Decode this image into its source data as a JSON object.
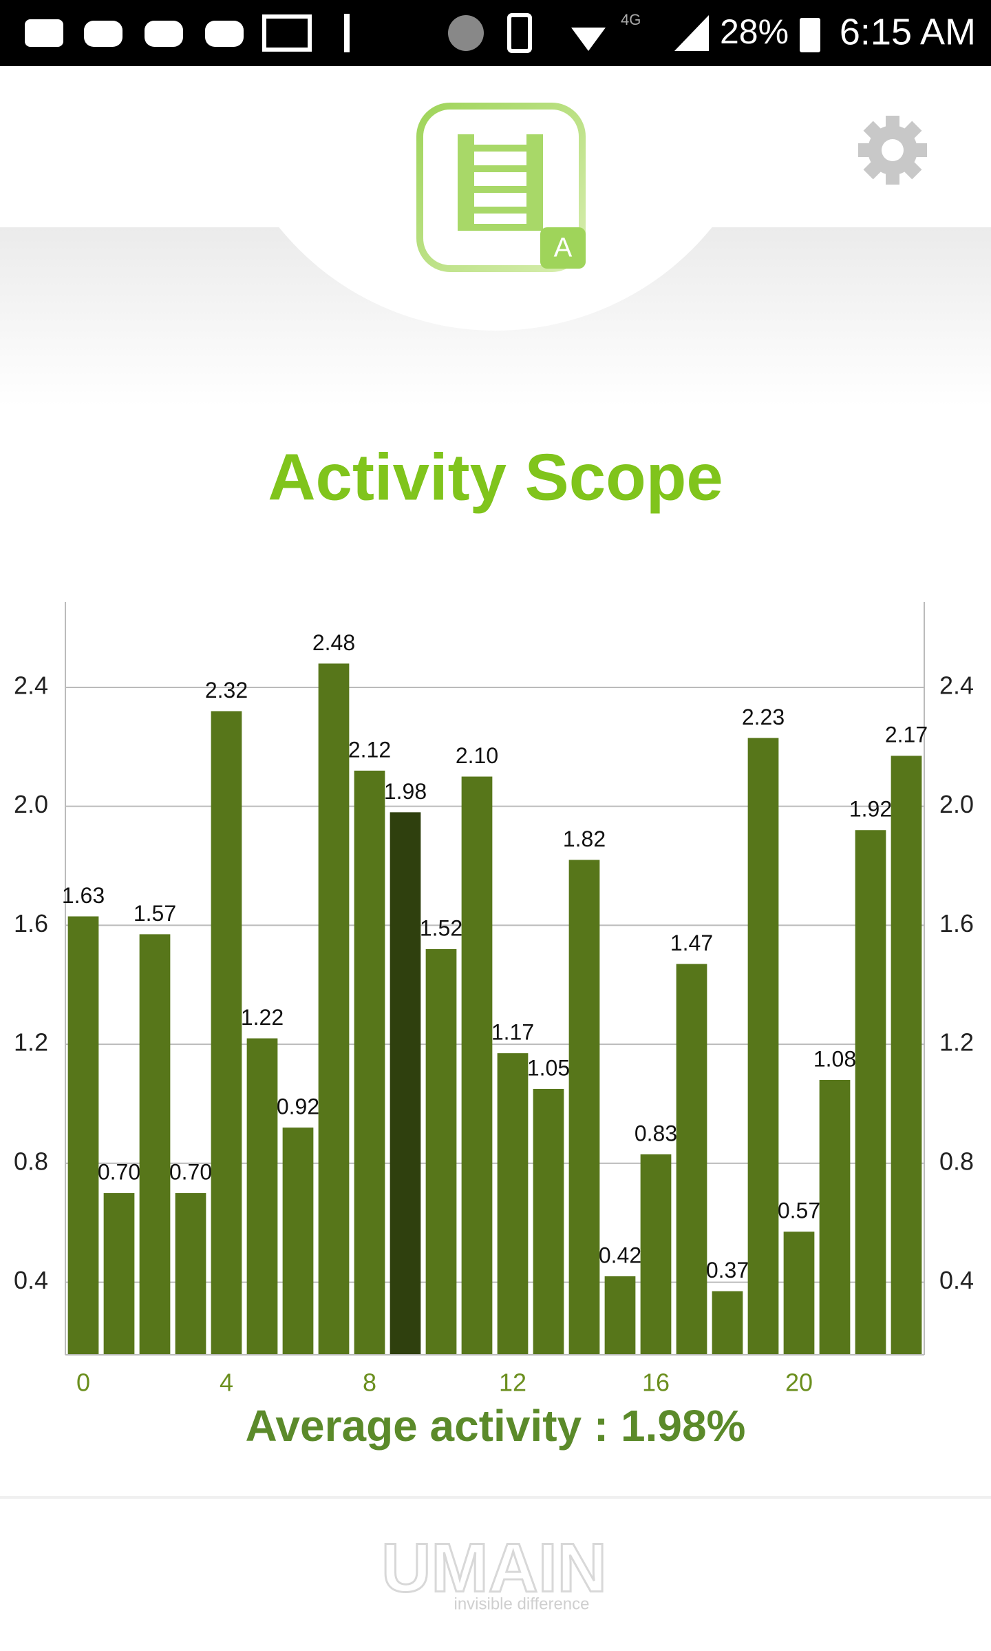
{
  "status_bar": {
    "network": "4G",
    "battery": "28%",
    "time": "6:15 AM"
  },
  "logo_badge": "A",
  "chart_data": {
    "type": "bar",
    "title": "Activity Scope",
    "categories": [
      "0",
      null,
      null,
      null,
      "4",
      null,
      null,
      null,
      "8",
      null,
      null,
      null,
      "12",
      null,
      null,
      null,
      "16",
      null,
      null,
      null,
      "20",
      null,
      null,
      null
    ],
    "values": [
      1.63,
      0.7,
      1.57,
      0.7,
      2.32,
      1.22,
      0.92,
      2.48,
      2.12,
      1.98,
      1.52,
      2.1,
      1.17,
      1.05,
      1.82,
      0.42,
      0.83,
      1.47,
      0.37,
      2.23,
      0.57,
      1.08,
      1.92,
      2.17
    ],
    "value_labels": [
      "1.63",
      "0.70",
      "1.57",
      "0.70",
      "2.32",
      "1.22",
      "0.92",
      "2.48",
      "2.12",
      "1.98",
      "1.52",
      "2.10",
      "1.17",
      "1.05",
      "1.82",
      "0.42",
      "0.83",
      "1.47",
      "0.37",
      "2.23",
      "0.57",
      "1.08",
      "1.92",
      "2.17"
    ],
    "color": "#57761a",
    "highlight": 9,
    "highlight_color": "#2f400e",
    "ylim": [
      0.156,
      2.687
    ],
    "yticks": [
      0.4,
      0.8,
      1.2,
      1.6,
      {
        "value": 2,
        "label": "2.0"
      },
      2.4
    ],
    "grid": true
  },
  "average_text": "Average activity : 1.98%",
  "footer": {
    "brand": "UMAIN",
    "tagline": "invisible difference"
  }
}
